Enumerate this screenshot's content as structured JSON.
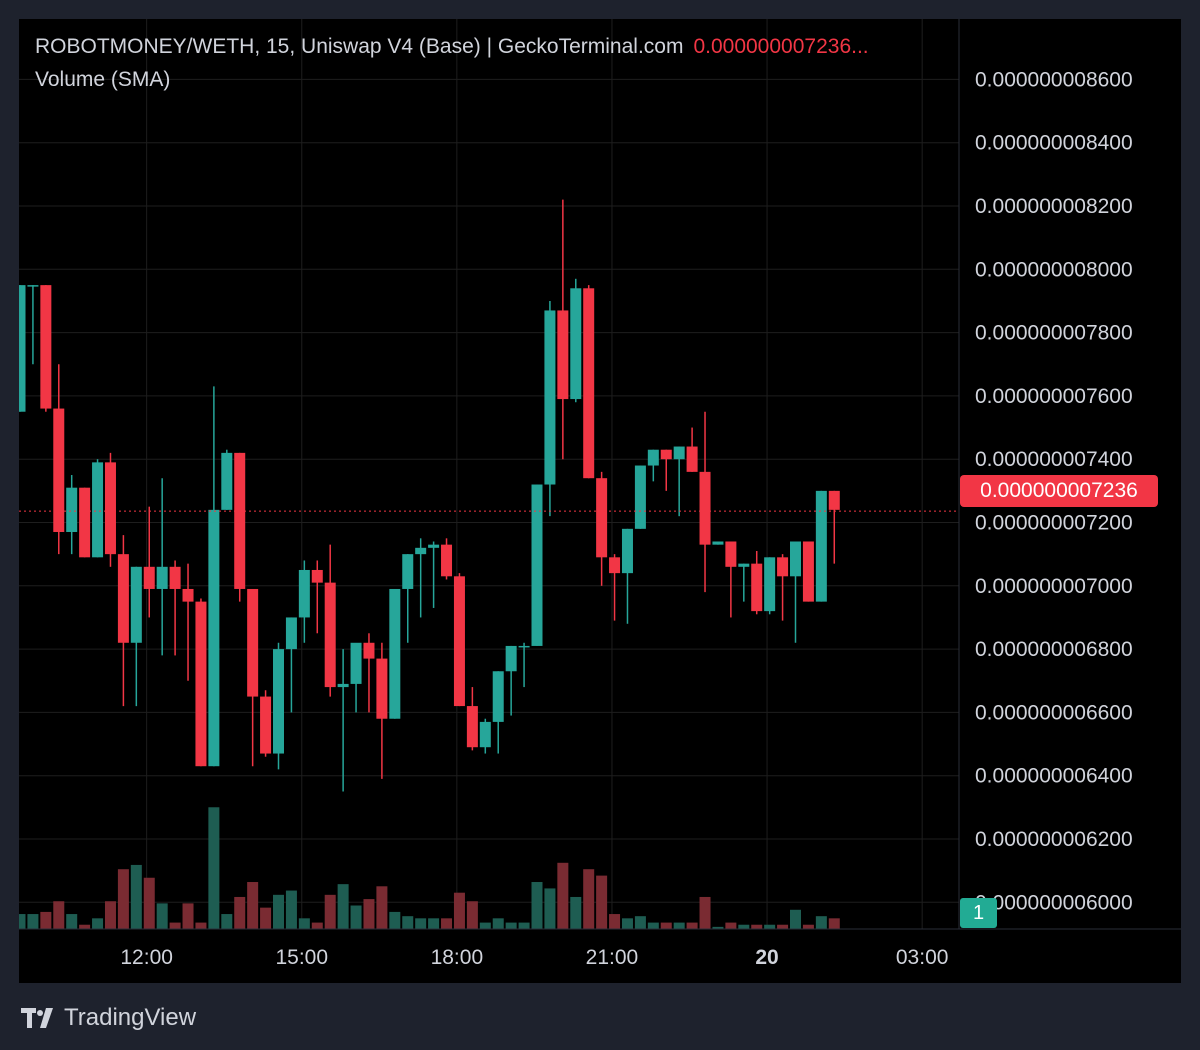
{
  "legend": {
    "title": "ROBOTMONEY/WETH, 15, Uniswap V4 (Base) | GeckoTerminal.com",
    "price": "0.000000007236...",
    "volume_indicator": "Volume (SMA)"
  },
  "current_price_label": "0.000000007236",
  "volume_label": "1",
  "brand": "TradingView",
  "colors": {
    "up": "#26a69a",
    "down": "#f23645",
    "vol_up": "#1e5d52",
    "vol_down": "#7a2b32",
    "grid": "#1e1e1e",
    "text": "#d1d4dc"
  },
  "chart_data": {
    "type": "candlestick",
    "title": "ROBOTMONEY/WETH, 15, Uniswap V4 (Base) | GeckoTerminal.com",
    "interval": "15",
    "yaxis": {
      "ticks": [
        "0.000000008600",
        "0.000000008400",
        "0.000000008200",
        "0.000000008000",
        "0.000000007800",
        "0.000000007600",
        "0.000000007400",
        "0.000000007200",
        "0.000000007000",
        "0.000000006800",
        "0.000000006600",
        "0.000000006400",
        "0.000000006200",
        "0.000000006000"
      ],
      "tick_values": [
        8.6,
        8.4,
        8.2,
        8.0,
        7.8,
        7.6,
        7.4,
        7.2,
        7.0,
        6.8,
        6.6,
        6.4,
        6.2,
        6.0
      ],
      "unit_scale": "1e-9",
      "range": [
        5.85,
        8.75
      ]
    },
    "xaxis": {
      "ticks": [
        {
          "label": "12:00",
          "hours": 12,
          "bold": false
        },
        {
          "label": "15:00",
          "hours": 15,
          "bold": false
        },
        {
          "label": "18:00",
          "hours": 18,
          "bold": false
        },
        {
          "label": "21:00",
          "hours": 21,
          "bold": false
        },
        {
          "label": "20",
          "hours": 24,
          "bold": true
        },
        {
          "label": "03:00",
          "hours": 27,
          "bold": false
        }
      ],
      "range_hours": [
        9.55,
        29.9
      ]
    },
    "last_price": 7.236,
    "volume_scale_max": 5.9,
    "candles": [
      {
        "t": 9.55,
        "o": 7.55,
        "h": 7.95,
        "l": 7.55,
        "c": 7.95,
        "v": 0.7
      },
      {
        "t": 9.8,
        "o": 7.95,
        "h": 7.95,
        "l": 7.7,
        "c": 7.95,
        "v": 0.7
      },
      {
        "t": 10.05,
        "o": 7.95,
        "h": 7.95,
        "l": 7.55,
        "c": 7.56,
        "v": 0.8
      },
      {
        "t": 10.3,
        "o": 7.56,
        "h": 7.7,
        "l": 7.1,
        "c": 7.17,
        "v": 1.3
      },
      {
        "t": 10.55,
        "o": 7.17,
        "h": 7.35,
        "l": 7.1,
        "c": 7.31,
        "v": 0.7
      },
      {
        "t": 10.8,
        "o": 7.31,
        "h": 7.31,
        "l": 7.09,
        "c": 7.09,
        "v": 0.2
      },
      {
        "t": 11.05,
        "o": 7.09,
        "h": 7.4,
        "l": 7.09,
        "c": 7.39,
        "v": 0.5
      },
      {
        "t": 11.3,
        "o": 7.39,
        "h": 7.42,
        "l": 7.06,
        "c": 7.1,
        "v": 1.3
      },
      {
        "t": 11.55,
        "o": 7.1,
        "h": 7.16,
        "l": 6.62,
        "c": 6.82,
        "v": 2.8
      },
      {
        "t": 11.8,
        "o": 6.82,
        "h": 7.06,
        "l": 6.62,
        "c": 7.06,
        "v": 3.0
      },
      {
        "t": 12.05,
        "o": 7.06,
        "h": 7.25,
        "l": 6.9,
        "c": 6.99,
        "v": 2.4
      },
      {
        "t": 12.3,
        "o": 6.99,
        "h": 7.34,
        "l": 6.78,
        "c": 7.06,
        "v": 1.2
      },
      {
        "t": 12.55,
        "o": 7.06,
        "h": 7.08,
        "l": 6.78,
        "c": 6.99,
        "v": 0.3
      },
      {
        "t": 12.8,
        "o": 6.99,
        "h": 7.07,
        "l": 6.7,
        "c": 6.95,
        "v": 1.2
      },
      {
        "t": 13.05,
        "o": 6.95,
        "h": 6.96,
        "l": 6.43,
        "c": 6.43,
        "v": 0.3
      },
      {
        "t": 13.3,
        "o": 6.43,
        "h": 7.63,
        "l": 6.43,
        "c": 7.24,
        "v": 5.7
      },
      {
        "t": 13.55,
        "o": 7.24,
        "h": 7.43,
        "l": 7.24,
        "c": 7.42,
        "v": 0.7
      },
      {
        "t": 13.8,
        "o": 7.42,
        "h": 7.42,
        "l": 6.95,
        "c": 6.99,
        "v": 1.5
      },
      {
        "t": 14.05,
        "o": 6.99,
        "h": 6.99,
        "l": 6.43,
        "c": 6.65,
        "v": 2.2
      },
      {
        "t": 14.3,
        "o": 6.65,
        "h": 6.67,
        "l": 6.46,
        "c": 6.47,
        "v": 1.0
      },
      {
        "t": 14.55,
        "o": 6.47,
        "h": 6.82,
        "l": 6.42,
        "c": 6.8,
        "v": 1.6
      },
      {
        "t": 14.8,
        "o": 6.8,
        "h": 6.9,
        "l": 6.6,
        "c": 6.9,
        "v": 1.8
      },
      {
        "t": 15.05,
        "o": 6.9,
        "h": 7.08,
        "l": 6.82,
        "c": 7.05,
        "v": 0.5
      },
      {
        "t": 15.3,
        "o": 7.05,
        "h": 7.08,
        "l": 6.85,
        "c": 7.01,
        "v": 0.3
      },
      {
        "t": 15.55,
        "o": 7.01,
        "h": 7.13,
        "l": 6.65,
        "c": 6.68,
        "v": 1.6
      },
      {
        "t": 15.8,
        "o": 6.68,
        "h": 6.8,
        "l": 6.35,
        "c": 6.69,
        "v": 2.1
      },
      {
        "t": 16.05,
        "o": 6.69,
        "h": 6.8,
        "l": 6.6,
        "c": 6.82,
        "v": 1.1
      },
      {
        "t": 16.3,
        "o": 6.82,
        "h": 6.85,
        "l": 6.6,
        "c": 6.77,
        "v": 1.4
      },
      {
        "t": 16.55,
        "o": 6.77,
        "h": 6.82,
        "l": 6.39,
        "c": 6.58,
        "v": 2.0
      },
      {
        "t": 16.8,
        "o": 6.58,
        "h": 6.99,
        "l": 6.58,
        "c": 6.99,
        "v": 0.8
      },
      {
        "t": 17.05,
        "o": 6.99,
        "h": 7.1,
        "l": 6.82,
        "c": 7.1,
        "v": 0.6
      },
      {
        "t": 17.3,
        "o": 7.1,
        "h": 7.15,
        "l": 6.9,
        "c": 7.12,
        "v": 0.5
      },
      {
        "t": 17.55,
        "o": 7.12,
        "h": 7.14,
        "l": 6.93,
        "c": 7.13,
        "v": 0.5
      },
      {
        "t": 17.8,
        "o": 7.13,
        "h": 7.15,
        "l": 7.02,
        "c": 7.03,
        "v": 0.5
      },
      {
        "t": 18.05,
        "o": 7.03,
        "h": 7.04,
        "l": 6.62,
        "c": 6.62,
        "v": 1.7
      },
      {
        "t": 18.3,
        "o": 6.62,
        "h": 6.68,
        "l": 6.48,
        "c": 6.49,
        "v": 1.3
      },
      {
        "t": 18.55,
        "o": 6.49,
        "h": 6.58,
        "l": 6.47,
        "c": 6.57,
        "v": 0.3
      },
      {
        "t": 18.8,
        "o": 6.57,
        "h": 6.73,
        "l": 6.47,
        "c": 6.73,
        "v": 0.5
      },
      {
        "t": 19.05,
        "o": 6.73,
        "h": 6.81,
        "l": 6.59,
        "c": 6.81,
        "v": 0.3
      },
      {
        "t": 19.3,
        "o": 6.81,
        "h": 6.82,
        "l": 6.68,
        "c": 6.81,
        "v": 0.3
      },
      {
        "t": 19.55,
        "o": 6.81,
        "h": 7.32,
        "l": 6.81,
        "c": 7.32,
        "v": 2.2
      },
      {
        "t": 19.8,
        "o": 7.32,
        "h": 7.9,
        "l": 7.22,
        "c": 7.87,
        "v": 1.9
      },
      {
        "t": 20.05,
        "o": 7.87,
        "h": 8.22,
        "l": 7.4,
        "c": 7.59,
        "v": 3.1
      },
      {
        "t": 20.3,
        "o": 7.59,
        "h": 7.97,
        "l": 7.58,
        "c": 7.94,
        "v": 1.5
      },
      {
        "t": 20.55,
        "o": 7.94,
        "h": 7.95,
        "l": 7.34,
        "c": 7.34,
        "v": 2.8
      },
      {
        "t": 20.8,
        "o": 7.34,
        "h": 7.36,
        "l": 7.0,
        "c": 7.09,
        "v": 2.5
      },
      {
        "t": 21.05,
        "o": 7.09,
        "h": 7.1,
        "l": 6.89,
        "c": 7.04,
        "v": 0.7
      },
      {
        "t": 21.3,
        "o": 7.04,
        "h": 7.18,
        "l": 6.88,
        "c": 7.18,
        "v": 0.5
      },
      {
        "t": 21.55,
        "o": 7.18,
        "h": 7.38,
        "l": 7.18,
        "c": 7.38,
        "v": 0.6
      },
      {
        "t": 21.8,
        "o": 7.38,
        "h": 7.43,
        "l": 7.33,
        "c": 7.43,
        "v": 0.3
      },
      {
        "t": 22.05,
        "o": 7.43,
        "h": 7.43,
        "l": 7.3,
        "c": 7.4,
        "v": 0.3
      },
      {
        "t": 22.3,
        "o": 7.4,
        "h": 7.44,
        "l": 7.22,
        "c": 7.44,
        "v": 0.3
      },
      {
        "t": 22.55,
        "o": 7.44,
        "h": 7.5,
        "l": 7.36,
        "c": 7.36,
        "v": 0.3
      },
      {
        "t": 22.8,
        "o": 7.36,
        "h": 7.55,
        "l": 6.98,
        "c": 7.13,
        "v": 1.5
      },
      {
        "t": 23.05,
        "o": 7.13,
        "h": 7.14,
        "l": 7.13,
        "c": 7.14,
        "v": 0.1
      },
      {
        "t": 23.3,
        "o": 7.14,
        "h": 7.14,
        "l": 6.9,
        "c": 7.06,
        "v": 0.3
      },
      {
        "t": 23.55,
        "o": 7.06,
        "h": 7.07,
        "l": 6.95,
        "c": 7.07,
        "v": 0.2
      },
      {
        "t": 23.8,
        "o": 7.07,
        "h": 7.11,
        "l": 6.91,
        "c": 6.92,
        "v": 0.2
      },
      {
        "t": 24.05,
        "o": 6.92,
        "h": 7.09,
        "l": 6.91,
        "c": 7.09,
        "v": 0.2
      },
      {
        "t": 24.3,
        "o": 7.09,
        "h": 7.1,
        "l": 6.89,
        "c": 7.03,
        "v": 0.2
      },
      {
        "t": 24.55,
        "o": 7.03,
        "h": 7.14,
        "l": 6.82,
        "c": 7.14,
        "v": 0.9
      },
      {
        "t": 24.8,
        "o": 7.14,
        "h": 7.14,
        "l": 6.95,
        "c": 6.95,
        "v": 0.2
      },
      {
        "t": 25.05,
        "o": 6.95,
        "h": 7.3,
        "l": 6.95,
        "c": 7.3,
        "v": 0.6
      },
      {
        "t": 25.3,
        "o": 7.3,
        "h": 7.3,
        "l": 7.07,
        "c": 7.24,
        "v": 0.5
      }
    ]
  }
}
